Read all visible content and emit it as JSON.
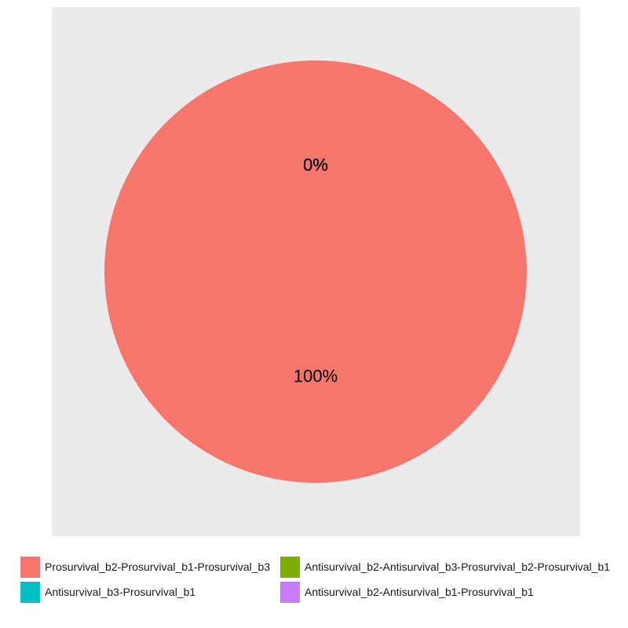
{
  "chart_data": {
    "type": "pie",
    "title": "",
    "slices": [
      {
        "label": "Prosurvival_b2-Prosurvival_b1-Prosurvival_b3",
        "value": 100,
        "display": "100%",
        "color": "#F8766D"
      },
      {
        "label": "Antisurvival_b2-Antisurvival_b3-Prosurvival_b2-Prosurvival_b1",
        "value": 0,
        "display": "0%",
        "color": "#7CAE00"
      },
      {
        "label": "Antisurvival_b3-Prosurvival_b1",
        "value": 0,
        "display": "0%",
        "color": "#00BFC4"
      },
      {
        "label": "Antisurvival_b2-Antisurvival_b1-Prosurvival_b1",
        "value": 0,
        "display": "0%",
        "color": "#C77CFF"
      }
    ],
    "legend_position": "bottom",
    "panel_background": "#EBEBEB"
  }
}
